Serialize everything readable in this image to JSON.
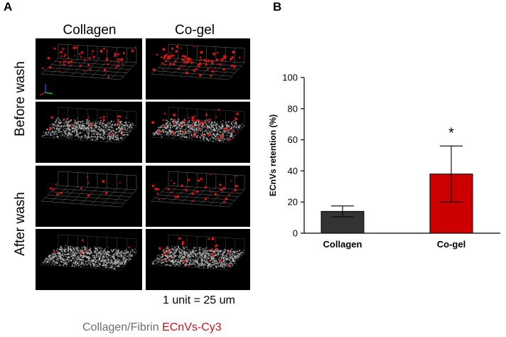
{
  "panel_a": {
    "letter": "A",
    "columns": [
      "Collagen",
      "Co-gel"
    ],
    "rows": [
      "Before wash",
      "After wash"
    ],
    "scale_note": "1 unit = 25 um",
    "legend": {
      "part1": "Collagen/Fibrin",
      "part2": "ECnVs-Cy3",
      "color1": "#6e6e6e",
      "color2": "#c8141e"
    }
  },
  "panel_b": {
    "letter": "B"
  },
  "chart_data": {
    "type": "bar",
    "categories": [
      "Collagen",
      "Co-gel"
    ],
    "values": [
      14,
      38
    ],
    "errors": [
      3.5,
      18
    ],
    "bar_colors": [
      "#333333",
      "#cc0000"
    ],
    "ylabel": "ECnVs retention (%)",
    "xlabel": "",
    "ylim": [
      0,
      100
    ],
    "yticks": [
      0,
      20,
      40,
      60,
      80,
      100
    ],
    "annotation": "*",
    "grid": false
  }
}
